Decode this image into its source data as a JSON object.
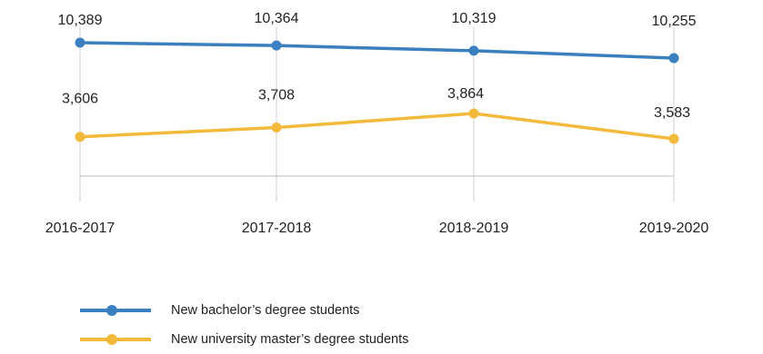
{
  "chart_data": {
    "type": "line",
    "title": "",
    "xlabel": "",
    "ylabel": "",
    "categories": [
      "2016-2017",
      "2017-2018",
      "2018-2019",
      "2019-2020"
    ],
    "series": [
      {
        "name": "New bachelor’s degree students",
        "color": "#3a7fbf",
        "values": [
          10389,
          10364,
          10319,
          10255
        ],
        "labels": [
          "10,389",
          "10,364",
          "10,319",
          "10,255"
        ]
      },
      {
        "name": "New university master’s degree students",
        "color": "#f2b93b",
        "values": [
          3606,
          3708,
          3864,
          3583
        ],
        "labels": [
          "3,606",
          "3,708",
          "3,864",
          "3,583"
        ]
      }
    ],
    "grid": "vertical",
    "legend_position": "bottom-left"
  }
}
